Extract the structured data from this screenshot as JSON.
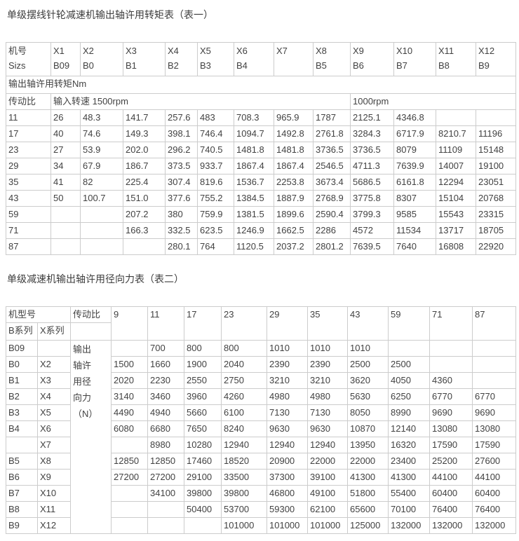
{
  "page": {
    "background": "#ffffff",
    "text_color": "#424242",
    "border_color": "#cccccc"
  },
  "table1": {
    "title": "单级摆线针轮减速机输出轴许用转矩表（表一）",
    "corner": {
      "line1": "机号",
      "line2": "Sizs"
    },
    "models": [
      {
        "x": "X1",
        "b": "B09"
      },
      {
        "x": "X2",
        "b": "B0"
      },
      {
        "x": "X3",
        "b": "B1"
      },
      {
        "x": "X4",
        "b": "B2"
      },
      {
        "x": "X5",
        "b": "B3"
      },
      {
        "x": "X6",
        "b": "B4"
      },
      {
        "x": "X7",
        "b": ""
      },
      {
        "x": "X8",
        "b": "B5"
      },
      {
        "x": "X9",
        "b": "B6"
      },
      {
        "x": "X10",
        "b": "B7"
      },
      {
        "x": "X11",
        "b": "B8"
      },
      {
        "x": "X12",
        "b": "B9"
      }
    ],
    "section_label": "输出轴许用转矩Nm",
    "ratio_label": "传动比",
    "speed_1500": "输入转速 1500rpm",
    "speed_1000": "1000rpm",
    "rows": [
      {
        "ratio": "11",
        "values": [
          "26",
          "48.3",
          "141.7",
          "257.6",
          "483",
          "708.3",
          "965.9",
          "1787",
          "2125.1",
          "4346.8",
          "",
          ""
        ]
      },
      {
        "ratio": "17",
        "values": [
          "40",
          "74.6",
          "149.3",
          "398.1",
          "746.4",
          "1094.7",
          "1492.8",
          "2761.8",
          "3284.3",
          "6717.9",
          "8210.7",
          "11196"
        ]
      },
      {
        "ratio": "23",
        "values": [
          "27",
          "53.9",
          "202.0",
          "296.2",
          "740.5",
          "1481.8",
          "1481.8",
          "3736.5",
          "3736.5",
          "8079",
          "11109",
          "15148"
        ]
      },
      {
        "ratio": "29",
        "values": [
          "34",
          "67.9",
          "186.7",
          "373.5",
          "933.7",
          "1867.4",
          "1867.4",
          "2546.5",
          "4711.3",
          "7639.9",
          "14007",
          "19100"
        ]
      },
      {
        "ratio": "35",
        "values": [
          "41",
          "82",
          "225.4",
          "307.4",
          "819.6",
          "1536.7",
          "2253.8",
          "3673.4",
          "5686.5",
          "6161.8",
          "12294",
          "23051"
        ]
      },
      {
        "ratio": "43",
        "values": [
          "50",
          "100.7",
          "151.0",
          "377.6",
          "755.2",
          "1384.5",
          "1887.9",
          "2768.9",
          "3775.8",
          "8307",
          "15104",
          "20768"
        ]
      },
      {
        "ratio": "59",
        "values": [
          "",
          "",
          "207.2",
          "380",
          "759.9",
          "1381.5",
          "1899.6",
          "2590.4",
          "3799.3",
          "9585",
          "15543",
          "23315"
        ]
      },
      {
        "ratio": "71",
        "values": [
          "",
          "",
          "166.3",
          "332.5",
          "623.5",
          "1246.9",
          "1662.5",
          "2286",
          "4572",
          "11534",
          "13717",
          "18705"
        ]
      },
      {
        "ratio": "87",
        "values": [
          "",
          "",
          "",
          "280.1",
          "764",
          "1120.5",
          "2037.2",
          "2801.2",
          "7639.5",
          "7640",
          "16808",
          "22920"
        ]
      }
    ]
  },
  "table2": {
    "title": "单级减速机输出轴许用径向力表（表二）",
    "header": {
      "model_label": "机型号",
      "b_series": "B系列",
      "x_series": "X系列",
      "ratio_label": "传动比",
      "ratios": [
        "9",
        "11",
        "17",
        "23",
        "29",
        "35",
        "43",
        "59",
        "71",
        "87"
      ]
    },
    "force_label": "输出轴许用径向力（N）",
    "rows": [
      {
        "b": "B09",
        "x": "",
        "values": [
          "",
          "700",
          "800",
          "800",
          "1010",
          "1010",
          "1010",
          "",
          "",
          ""
        ]
      },
      {
        "b": "B0",
        "x": "X2",
        "values": [
          "1500",
          "1660",
          "1900",
          "2040",
          "2390",
          "2390",
          "2500",
          "2500",
          "",
          ""
        ]
      },
      {
        "b": "B1",
        "x": "X3",
        "values": [
          "2020",
          "2230",
          "2550",
          "2750",
          "3210",
          "3210",
          "3620",
          "4050",
          "4360",
          ""
        ]
      },
      {
        "b": "B2",
        "x": "X4",
        "values": [
          "3140",
          "3460",
          "3960",
          "4260",
          "4980",
          "4980",
          "5630",
          "6250",
          "6770",
          "6770"
        ]
      },
      {
        "b": "B3",
        "x": "X5",
        "values": [
          "4490",
          "4940",
          "5660",
          "6100",
          "7130",
          "7130",
          "8050",
          "8990",
          "9690",
          "9690"
        ]
      },
      {
        "b": "B4",
        "x": "X6",
        "values": [
          "6080",
          "6680",
          "7650",
          "8240",
          "9630",
          "9630",
          "10870",
          "12140",
          "13080",
          "13080"
        ]
      },
      {
        "b": "",
        "x": "X7",
        "values": [
          "",
          "8980",
          "10280",
          "12940",
          "12940",
          "12940",
          "13950",
          "16320",
          "17590",
          "17590"
        ]
      },
      {
        "b": "B5",
        "x": "X8",
        "values": [
          "12850",
          "12850",
          "17460",
          "18520",
          "20900",
          "22000",
          "22000",
          "23400",
          "25200",
          "27600"
        ]
      },
      {
        "b": "B6",
        "x": "X9",
        "values": [
          "27200",
          "27200",
          "29100",
          "33500",
          "37300",
          "39100",
          "41300",
          "41300",
          "44100",
          "44100"
        ]
      },
      {
        "b": "B7",
        "x": "X10",
        "values": [
          "",
          "34100",
          "39800",
          "39800",
          "46800",
          "49100",
          "51800",
          "55400",
          "60400",
          "60400"
        ]
      },
      {
        "b": "B8",
        "x": "X11",
        "values": [
          "",
          "",
          "50400",
          "53700",
          "59300",
          "62100",
          "65600",
          "70100",
          "76400",
          "76400"
        ]
      },
      {
        "b": "B9",
        "x": "X12",
        "values": [
          "",
          "",
          "",
          "101000",
          "101000",
          "101000",
          "125000",
          "132000",
          "132000",
          "132000"
        ]
      }
    ]
  }
}
